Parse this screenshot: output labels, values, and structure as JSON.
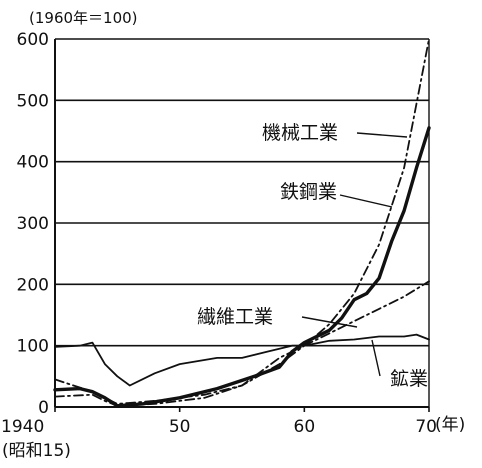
{
  "chart_data": {
    "type": "line",
    "unit_label": "(1960年＝100)",
    "x_unit": "(年)",
    "x_sub_label": "(昭和15)",
    "xlim": [
      1940,
      1970
    ],
    "ylim": [
      0,
      600
    ],
    "y_ticks": [
      0,
      100,
      200,
      300,
      400,
      500,
      600
    ],
    "x_ticks": [
      {
        "value": 1940,
        "label": "1940"
      },
      {
        "value": 1950,
        "label": "50"
      },
      {
        "value": 1960,
        "label": "60"
      },
      {
        "value": 1970,
        "label": "70"
      }
    ],
    "grid": "horizontal",
    "series": [
      {
        "name": "機械工業",
        "style": "dash-dot",
        "stroke_weight": "normal",
        "x": [
          1940,
          1943,
          1944,
          1945,
          1948,
          1952,
          1955,
          1958,
          1960,
          1962,
          1964,
          1966,
          1968,
          1970
        ],
        "y": [
          45,
          25,
          15,
          5,
          10,
          20,
          35,
          70,
          100,
          135,
          185,
          265,
          390,
          600
        ]
      },
      {
        "name": "鉄鋼業",
        "style": "solid",
        "stroke_weight": "bold",
        "x": [
          1940,
          1942,
          1943,
          1944,
          1945,
          1947,
          1950,
          1953,
          1956,
          1958,
          1959,
          1960,
          1962,
          1963,
          1964,
          1965,
          1966,
          1967,
          1968,
          1969,
          1970
        ],
        "y": [
          28,
          30,
          25,
          15,
          2,
          5,
          15,
          30,
          50,
          65,
          90,
          105,
          125,
          145,
          175,
          185,
          210,
          270,
          320,
          390,
          455
        ]
      },
      {
        "name": "繊維工業",
        "style": "dash-dot",
        "stroke_weight": "normal",
        "x": [
          1940,
          1943,
          1944,
          1945,
          1948,
          1952,
          1955,
          1958,
          1960,
          1962,
          1964,
          1966,
          1968,
          1970
        ],
        "y": [
          17,
          20,
          10,
          2,
          5,
          15,
          35,
          80,
          100,
          120,
          140,
          160,
          180,
          205
        ]
      },
      {
        "name": "鉱業",
        "style": "solid",
        "stroke_weight": "normal",
        "x": [
          1940,
          1942,
          1943,
          1944,
          1945,
          1946,
          1948,
          1950,
          1953,
          1955,
          1957,
          1959,
          1960,
          1962,
          1964,
          1966,
          1968,
          1969,
          1970
        ],
        "y": [
          98,
          100,
          105,
          70,
          50,
          35,
          55,
          70,
          80,
          80,
          90,
          100,
          100,
          108,
          110,
          115,
          115,
          118,
          110
        ]
      }
    ]
  }
}
